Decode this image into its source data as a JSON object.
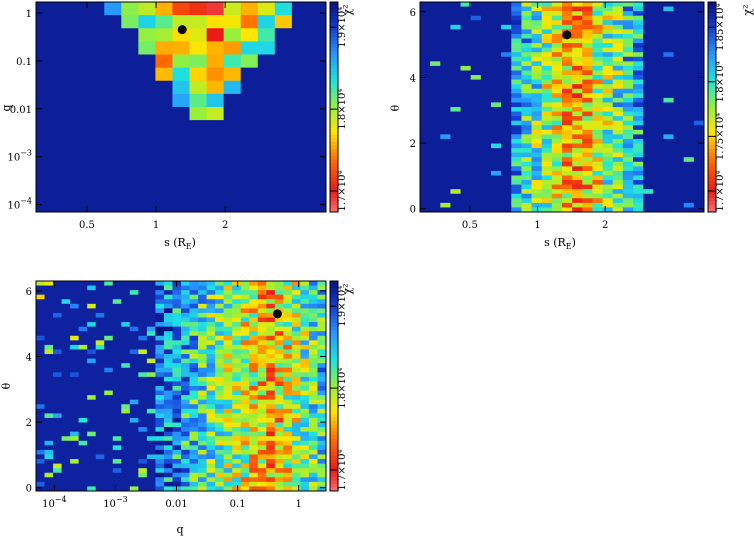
{
  "chart_data": [
    {
      "type": "heatmap",
      "name": "s-q",
      "xlabel": "s (R_E)",
      "ylabel": "q",
      "colorbar_label": "χ²",
      "x_scale": "log",
      "y_scale": "log",
      "xlim": [
        0.3,
        5.5
      ],
      "ylim": [
        7e-05,
        1.7
      ],
      "x_ticks": [
        0.5,
        1,
        2
      ],
      "x_tick_labels": [
        "0.5",
        "1",
        "2"
      ],
      "y_ticks": [
        1,
        0.1,
        0.01,
        0.001,
        0.0001
      ],
      "y_tick_labels": [
        "1",
        "0.1",
        "0.01",
        "10^-3",
        "10^-4"
      ],
      "colorbar_ticks": [
        17000,
        18000,
        19000
      ],
      "colorbar_tick_labels": [
        "1.7×10⁴",
        "1.8×10⁴",
        "1.9×10⁴"
      ],
      "best_fit": {
        "x": 1.3,
        "y": 0.45
      },
      "grid": false
    },
    {
      "type": "heatmap",
      "name": "s-theta",
      "xlabel": "s (R_E)",
      "ylabel": "θ",
      "colorbar_label": "χ²",
      "x_scale": "log",
      "y_scale": "linear",
      "xlim": [
        0.3,
        5.5
      ],
      "ylim": [
        -0.1,
        6.3
      ],
      "x_ticks": [
        0.5,
        1,
        2
      ],
      "x_tick_labels": [
        "0.5",
        "1",
        "2"
      ],
      "y_ticks": [
        0,
        2,
        4,
        6
      ],
      "y_tick_labels": [
        "0",
        "2",
        "4",
        "6"
      ],
      "colorbar_ticks": [
        17000,
        17500,
        18000,
        18500
      ],
      "colorbar_tick_labels": [
        "1.7×10⁴",
        "1.75×10⁴",
        "1.8×10⁴",
        "1.85×10⁴"
      ],
      "best_fit": {
        "x": 1.35,
        "y": 5.3
      },
      "grid": false
    },
    {
      "type": "heatmap",
      "name": "q-theta",
      "xlabel": "q",
      "ylabel": "θ",
      "colorbar_label": "χ²",
      "x_scale": "log",
      "y_scale": "linear",
      "xlim": [
        5e-05,
        2.8
      ],
      "ylim": [
        -0.1,
        6.3
      ],
      "x_ticks": [
        0.0001,
        0.001,
        0.01,
        0.1,
        1
      ],
      "x_tick_labels": [
        "10^-4",
        "10^-3",
        "0.01",
        "0.1",
        "1"
      ],
      "y_ticks": [
        0,
        2,
        4,
        6
      ],
      "y_tick_labels": [
        "0",
        "2",
        "4",
        "6"
      ],
      "colorbar_ticks": [
        17000,
        18000,
        19000
      ],
      "colorbar_tick_labels": [
        "1.7×10⁴",
        "1.8×10⁴",
        "1.9×10⁴"
      ],
      "best_fit": {
        "x": 0.45,
        "y": 5.3
      },
      "grid": false
    }
  ]
}
